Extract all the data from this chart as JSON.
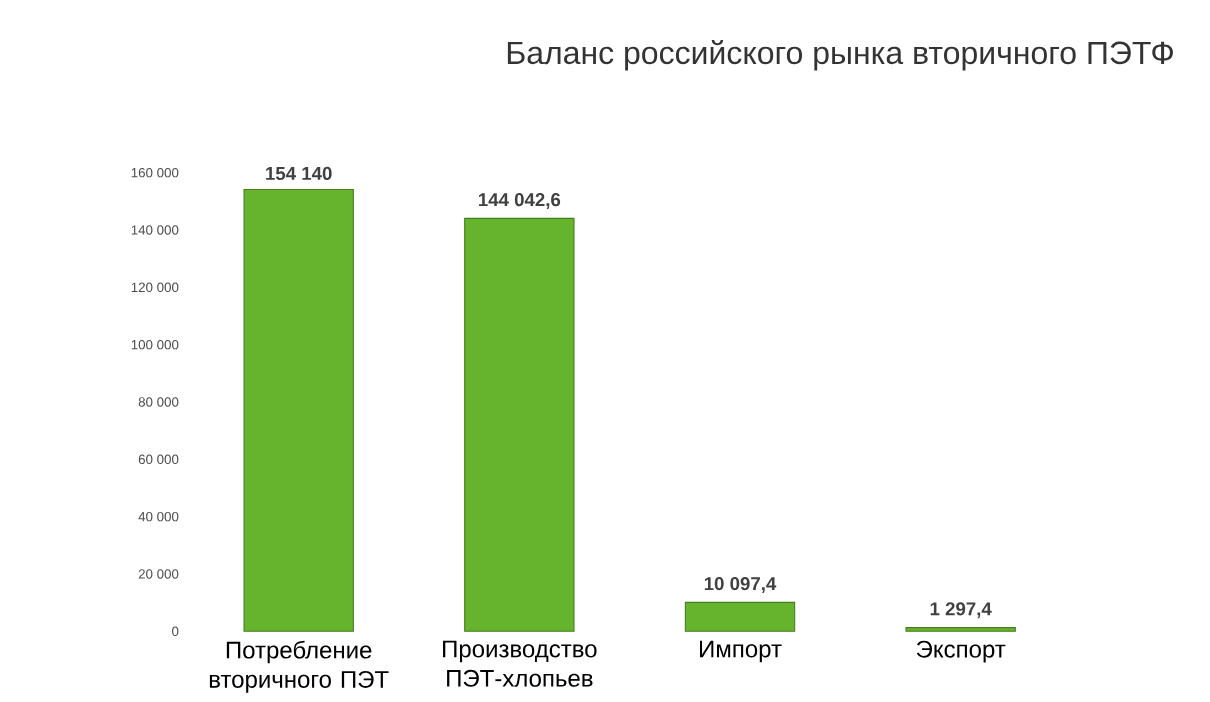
{
  "chart_data": {
    "type": "bar",
    "title": "Баланс российского рынка вторичного ПЭТФ",
    "categories": [
      "Потребление вторичного ПЭТ",
      "Производство ПЭТ-хлопьев",
      "Импорт",
      "Экспорт"
    ],
    "values": [
      154140,
      144042.6,
      10097.4,
      1297.4
    ],
    "value_labels": [
      "154 140",
      "144 042,6",
      "10 097,4",
      "1 297,4"
    ],
    "color": "#66b32e",
    "ylim": [
      0,
      160000
    ],
    "yticks": [
      {
        "value": 0,
        "label": "0"
      },
      {
        "value": 20000,
        "label": "20 000"
      },
      {
        "value": 40000,
        "label": "40 000"
      },
      {
        "value": 60000,
        "label": "60 000"
      },
      {
        "value": 80000,
        "label": "80 000"
      },
      {
        "value": 100000,
        "label": "100 000"
      },
      {
        "value": 120000,
        "label": "120 000"
      },
      {
        "value": 140000,
        "label": "140 000"
      },
      {
        "value": 160000,
        "label": "160 000"
      }
    ]
  }
}
